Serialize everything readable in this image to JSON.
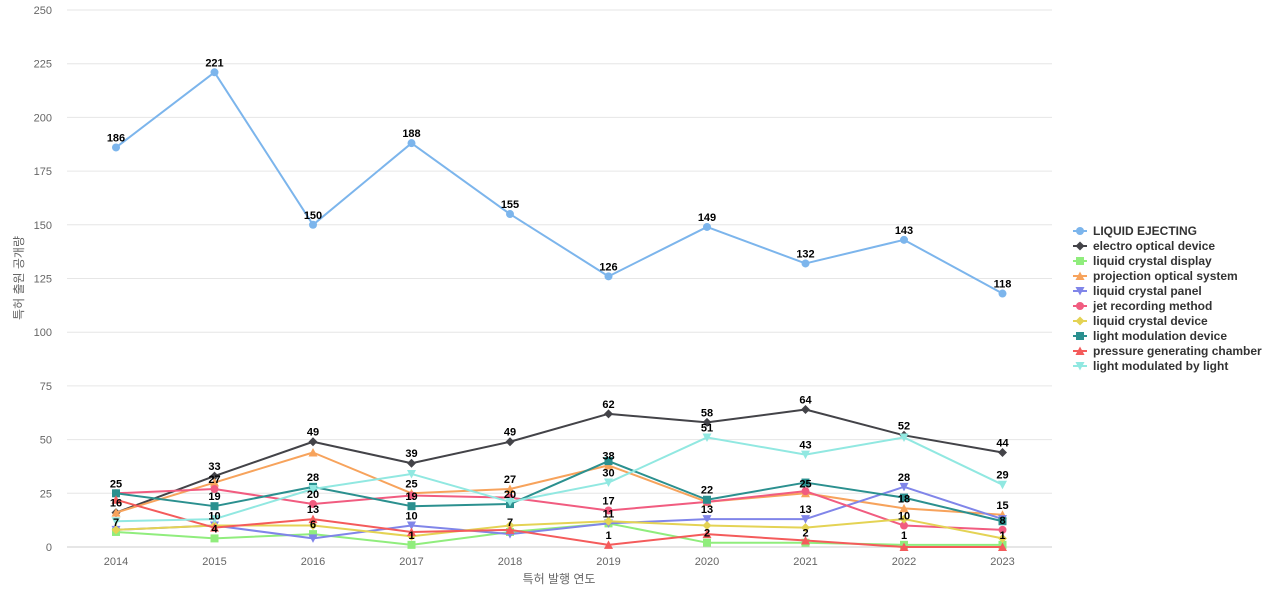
{
  "chart_data": {
    "type": "line",
    "title": "",
    "xlabel": "특허 발행 연도",
    "ylabel": "특허 출원 공개량",
    "categories": [
      "2014",
      "2015",
      "2016",
      "2017",
      "2018",
      "2019",
      "2020",
      "2021",
      "2022",
      "2023"
    ],
    "ylim": [
      0,
      250
    ],
    "yticks": [
      0,
      25,
      50,
      75,
      100,
      125,
      150,
      175,
      200,
      225,
      250
    ],
    "grid": true,
    "legend_position": "right",
    "series": [
      {
        "name": "LIQUID EJECTING",
        "color": "#7cb5ec",
        "marker": "circle",
        "values": [
          186,
          221,
          150,
          188,
          155,
          126,
          149,
          132,
          143,
          118
        ]
      },
      {
        "name": "electro optical device",
        "color": "#434348",
        "marker": "diamond",
        "values": [
          16,
          33,
          49,
          39,
          49,
          62,
          58,
          64,
          52,
          44
        ]
      },
      {
        "name": "liquid crystal display",
        "color": "#90ed7d",
        "marker": "square",
        "values": [
          7,
          4,
          6,
          1,
          7,
          11,
          2,
          2,
          1,
          1
        ]
      },
      {
        "name": "projection optical system",
        "color": "#f7a35c",
        "marker": "triangle",
        "values": [
          16,
          30,
          44,
          25,
          27,
          38,
          21,
          25,
          18,
          15
        ]
      },
      {
        "name": "liquid crystal panel",
        "color": "#8085e9",
        "marker": "triangle-down",
        "values": [
          8,
          10,
          4,
          10,
          6,
          11,
          13,
          13,
          28,
          13
        ]
      },
      {
        "name": "jet recording method",
        "color": "#f15c80",
        "marker": "circle",
        "values": [
          25,
          27,
          20,
          24,
          23,
          17,
          21,
          26,
          10,
          8
        ]
      },
      {
        "name": "liquid crystal device",
        "color": "#e4d354",
        "marker": "diamond",
        "values": [
          8,
          10,
          10,
          5,
          10,
          12,
          10,
          9,
          13,
          4
        ]
      },
      {
        "name": "light modulation device",
        "color": "#2b908f",
        "marker": "square",
        "values": [
          25,
          19,
          28,
          19,
          20,
          40,
          22,
          30,
          23,
          12
        ]
      },
      {
        "name": "pressure generating chamber",
        "color": "#f45b5b",
        "marker": "triangle",
        "values": [
          22,
          9,
          13,
          7,
          8,
          1,
          6,
          3,
          0,
          0
        ]
      },
      {
        "name": "light modulated by light",
        "color": "#91e8e1",
        "marker": "triangle-down",
        "values": [
          12,
          13,
          27,
          34,
          21,
          30,
          51,
          43,
          51,
          29
        ]
      }
    ],
    "data_labels": [
      {
        "x": "2014",
        "text": "186",
        "value": 186
      },
      {
        "x": "2014",
        "text": "25",
        "value": 25
      },
      {
        "x": "2014",
        "text": "16",
        "value": 16
      },
      {
        "x": "2014",
        "text": "7",
        "value": 7
      },
      {
        "x": "2015",
        "text": "221",
        "value": 221
      },
      {
        "x": "2015",
        "text": "33",
        "value": 33
      },
      {
        "x": "2015",
        "text": "27",
        "value": 27
      },
      {
        "x": "2015",
        "text": "19",
        "value": 19
      },
      {
        "x": "2015",
        "text": "10",
        "value": 10
      },
      {
        "x": "2015",
        "text": "4",
        "value": 4
      },
      {
        "x": "2016",
        "text": "150",
        "value": 150
      },
      {
        "x": "2016",
        "text": "49",
        "value": 49
      },
      {
        "x": "2016",
        "text": "28",
        "value": 28
      },
      {
        "x": "2016",
        "text": "20",
        "value": 20
      },
      {
        "x": "2016",
        "text": "13",
        "value": 13
      },
      {
        "x": "2016",
        "text": "6",
        "value": 6
      },
      {
        "x": "2017",
        "text": "188",
        "value": 188
      },
      {
        "x": "2017",
        "text": "39",
        "value": 39
      },
      {
        "x": "2017",
        "text": "25",
        "value": 25
      },
      {
        "x": "2017",
        "text": "19",
        "value": 19
      },
      {
        "x": "2017",
        "text": "10",
        "value": 10
      },
      {
        "x": "2017",
        "text": "1",
        "value": 1
      },
      {
        "x": "2018",
        "text": "155",
        "value": 155
      },
      {
        "x": "2018",
        "text": "49",
        "value": 49
      },
      {
        "x": "2018",
        "text": "27",
        "value": 27
      },
      {
        "x": "2018",
        "text": "20",
        "value": 20
      },
      {
        "x": "2018",
        "text": "7",
        "value": 7
      },
      {
        "x": "2019",
        "text": "126",
        "value": 126
      },
      {
        "x": "2019",
        "text": "62",
        "value": 62
      },
      {
        "x": "2019",
        "text": "38",
        "value": 38
      },
      {
        "x": "2019",
        "text": "30",
        "value": 30
      },
      {
        "x": "2019",
        "text": "17",
        "value": 17
      },
      {
        "x": "2019",
        "text": "11",
        "value": 11
      },
      {
        "x": "2019",
        "text": "1",
        "value": 1
      },
      {
        "x": "2020",
        "text": "149",
        "value": 149
      },
      {
        "x": "2020",
        "text": "58",
        "value": 58
      },
      {
        "x": "2020",
        "text": "51",
        "value": 51
      },
      {
        "x": "2020",
        "text": "22",
        "value": 22
      },
      {
        "x": "2020",
        "text": "13",
        "value": 13
      },
      {
        "x": "2020",
        "text": "2",
        "value": 2
      },
      {
        "x": "2021",
        "text": "132",
        "value": 132
      },
      {
        "x": "2021",
        "text": "64",
        "value": 64
      },
      {
        "x": "2021",
        "text": "43",
        "value": 43
      },
      {
        "x": "2021",
        "text": "25",
        "value": 25
      },
      {
        "x": "2021",
        "text": "13",
        "value": 13
      },
      {
        "x": "2021",
        "text": "2",
        "value": 2
      },
      {
        "x": "2022",
        "text": "143",
        "value": 143
      },
      {
        "x": "2022",
        "text": "52",
        "value": 52
      },
      {
        "x": "2022",
        "text": "28",
        "value": 28
      },
      {
        "x": "2022",
        "text": "18",
        "value": 18
      },
      {
        "x": "2022",
        "text": "10",
        "value": 10
      },
      {
        "x": "2022",
        "text": "1",
        "value": 1
      },
      {
        "x": "2023",
        "text": "118",
        "value": 118
      },
      {
        "x": "2023",
        "text": "44",
        "value": 44
      },
      {
        "x": "2023",
        "text": "29",
        "value": 29
      },
      {
        "x": "2023",
        "text": "15",
        "value": 15
      },
      {
        "x": "2023",
        "text": "8",
        "value": 8
      },
      {
        "x": "2023",
        "text": "1",
        "value": 1
      }
    ]
  }
}
